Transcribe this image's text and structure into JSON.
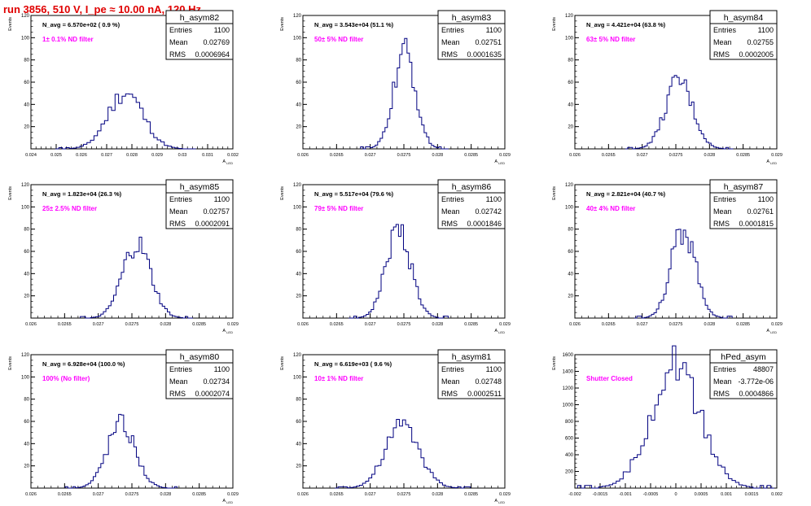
{
  "title": "run 3856,   510 V, I_pe ≈ 10.00 nA, 120 Hz",
  "chart_data": [
    {
      "type": "histogram",
      "name": "h_asym82",
      "stats": {
        "entries_label": "Entries",
        "entries": "1100",
        "mean_label": "Mean",
        "mean": "0.02769",
        "rms_label": "RMS",
        "rms": "0.0006964"
      },
      "navg_text": "N_avg = 6.570e+02 ( 0.9 %)",
      "filter_text": "1± 0.1% ND filter",
      "xlim": [
        0.024,
        0.032
      ],
      "ylim": [
        0,
        120
      ],
      "xticks": [
        "0.024",
        "0.025",
        "0.026",
        "0.027",
        "0.028",
        "0.029",
        "0.03",
        "0.031",
        "0.032"
      ],
      "yticks": [
        "20",
        "40",
        "60",
        "80",
        "100",
        "120"
      ],
      "xlabel": "A_{LED}",
      "ylabel": "Events",
      "peak_center": 0.02775,
      "peak_height": 54,
      "bins": 40
    },
    {
      "type": "histogram",
      "name": "h_asym83",
      "stats": {
        "entries_label": "Entries",
        "entries": "1100",
        "mean_label": "Mean",
        "mean": "0.02751",
        "rms_label": "RMS",
        "rms": "0.0001635"
      },
      "navg_text": "N_avg = 3.543e+04 (51.1 %)",
      "filter_text": "50± 5% ND filter",
      "xlim": [
        0.026,
        0.029
      ],
      "ylim": [
        0,
        120
      ],
      "xticks": [
        "0.026",
        "0.0265",
        "0.027",
        "0.0275",
        "0.028",
        "0.0285",
        "0.029"
      ],
      "yticks": [
        "20",
        "40",
        "60",
        "80",
        "100",
        "120"
      ],
      "xlabel": "A_{LED}",
      "ylabel": "Events",
      "peak_center": 0.02751,
      "peak_height": 92,
      "bins": 36
    },
    {
      "type": "histogram",
      "name": "h_asym84",
      "stats": {
        "entries_label": "Entries",
        "entries": "1100",
        "mean_label": "Mean",
        "mean": "0.02755",
        "rms_label": "RMS",
        "rms": "0.0002005"
      },
      "navg_text": "N_avg = 4.421e+04 (63.8 %)",
      "filter_text": "63± 5% ND filter",
      "xlim": [
        0.026,
        0.029
      ],
      "ylim": [
        0,
        120
      ],
      "xticks": [
        "0.026",
        "0.0265",
        "0.027",
        "0.0275",
        "0.028",
        "0.0285",
        "0.029"
      ],
      "yticks": [
        "20",
        "40",
        "60",
        "80",
        "100",
        "120"
      ],
      "xlabel": "A_{LED}",
      "ylabel": "Events",
      "peak_center": 0.02755,
      "peak_height": 65,
      "bins": 44
    },
    {
      "type": "histogram",
      "name": "h_asym85",
      "stats": {
        "entries_label": "Entries",
        "entries": "1100",
        "mean_label": "Mean",
        "mean": "0.02757",
        "rms_label": "RMS",
        "rms": "0.0002091"
      },
      "navg_text": "N_avg = 1.823e+04 (26.3 %)",
      "filter_text": "25± 2.5% ND filter",
      "xlim": [
        0.026,
        0.029
      ],
      "ylim": [
        0,
        120
      ],
      "xticks": [
        "0.026",
        "0.0265",
        "0.027",
        "0.0275",
        "0.028",
        "0.0285",
        "0.029"
      ],
      "yticks": [
        "20",
        "40",
        "60",
        "80",
        "100",
        "120"
      ],
      "xlabel": "A_{LED}",
      "ylabel": "Events",
      "peak_center": 0.02757,
      "peak_height": 70,
      "bins": 44
    },
    {
      "type": "histogram",
      "name": "h_asym86",
      "stats": {
        "entries_label": "Entries",
        "entries": "1100",
        "mean_label": "Mean",
        "mean": "0.02742",
        "rms_label": "RMS",
        "rms": "0.0001846"
      },
      "navg_text": "N_avg = 5.517e+04 (79.6 %)",
      "filter_text": "79± 5% ND filter",
      "xlim": [
        0.026,
        0.029
      ],
      "ylim": [
        0,
        120
      ],
      "xticks": [
        "0.026",
        "0.0265",
        "0.027",
        "0.0275",
        "0.028",
        "0.0285",
        "0.029"
      ],
      "yticks": [
        "20",
        "40",
        "60",
        "80",
        "100",
        "120"
      ],
      "xlabel": "A_{LED}",
      "ylabel": "Events",
      "peak_center": 0.02742,
      "peak_height": 85,
      "bins": 40
    },
    {
      "type": "histogram",
      "name": "h_asym87",
      "stats": {
        "entries_label": "Entries",
        "entries": "1100",
        "mean_label": "Mean",
        "mean": "0.02761",
        "rms_label": "RMS",
        "rms": "0.0001815"
      },
      "navg_text": "N_avg = 2.821e+04 (40.7 %)",
      "filter_text": "40± 4% ND filter",
      "xlim": [
        0.026,
        0.029
      ],
      "ylim": [
        0,
        120
      ],
      "xticks": [
        "0.026",
        "0.0265",
        "0.027",
        "0.0275",
        "0.028",
        "0.0285",
        "0.029"
      ],
      "yticks": [
        "20",
        "40",
        "60",
        "80",
        "100",
        "120"
      ],
      "xlabel": "A_{LED}",
      "ylabel": "Events",
      "peak_center": 0.02761,
      "peak_height": 85,
      "bins": 40
    },
    {
      "type": "histogram",
      "name": "h_asym80",
      "stats": {
        "entries_label": "Entries",
        "entries": "1100",
        "mean_label": "Mean",
        "mean": "0.02734",
        "rms_label": "RMS",
        "rms": "0.0002074"
      },
      "navg_text": "N_avg = 6.928e+04 (100.0 %)",
      "filter_text": "100% (No filter)",
      "xlim": [
        0.026,
        0.029
      ],
      "ylim": [
        0,
        120
      ],
      "xticks": [
        "0.026",
        "0.0265",
        "0.027",
        "0.0275",
        "0.028",
        "0.0285",
        "0.029"
      ],
      "yticks": [
        "20",
        "40",
        "60",
        "80",
        "100",
        "120"
      ],
      "xlabel": "A_{LED}",
      "ylabel": "Events",
      "peak_center": 0.02734,
      "peak_height": 62,
      "bins": 44
    },
    {
      "type": "histogram",
      "name": "h_asym81",
      "stats": {
        "entries_label": "Entries",
        "entries": "1100",
        "mean_label": "Mean",
        "mean": "0.02748",
        "rms_label": "RMS",
        "rms": "0.0002511"
      },
      "navg_text": "N_avg = 6.619e+03 ( 9.6 %)",
      "filter_text": "10± 1% ND filter",
      "xlim": [
        0.026,
        0.029
      ],
      "ylim": [
        0,
        120
      ],
      "xticks": [
        "0.026",
        "0.0265",
        "0.027",
        "0.0275",
        "0.028",
        "0.0285",
        "0.029"
      ],
      "yticks": [
        "20",
        "40",
        "60",
        "80",
        "100",
        "120"
      ],
      "xlabel": "A_{LED}",
      "ylabel": "Events",
      "peak_center": 0.02748,
      "peak_height": 60,
      "bins": 44
    },
    {
      "type": "histogram",
      "name": "hPed_asym",
      "stats": {
        "entries_label": "Entries",
        "entries": "48807",
        "mean_label": "Mean",
        "mean": "-3.772e-06",
        "rms_label": "RMS",
        "rms": "0.0004866"
      },
      "navg_text": "",
      "filter_text": "Shutter Closed",
      "xlim": [
        -0.002,
        0.002
      ],
      "ylim": [
        0,
        1600
      ],
      "xticks": [
        "-0.002",
        "-0.0015",
        "-0.001",
        "-0.0005",
        "0",
        "0.0005",
        "0.001",
        "0.0015",
        "0.002"
      ],
      "yticks": [
        "200",
        "400",
        "600",
        "800",
        "1000",
        "1200",
        "1400",
        "1600"
      ],
      "xlabel": "",
      "ylabel": "Events",
      "peak_center": 0.0,
      "peak_height": 1560,
      "bins": 56
    }
  ],
  "colors": {
    "line": "#000080",
    "label": "#ff00ff",
    "title": "#e00000",
    "axis": "#000000"
  }
}
